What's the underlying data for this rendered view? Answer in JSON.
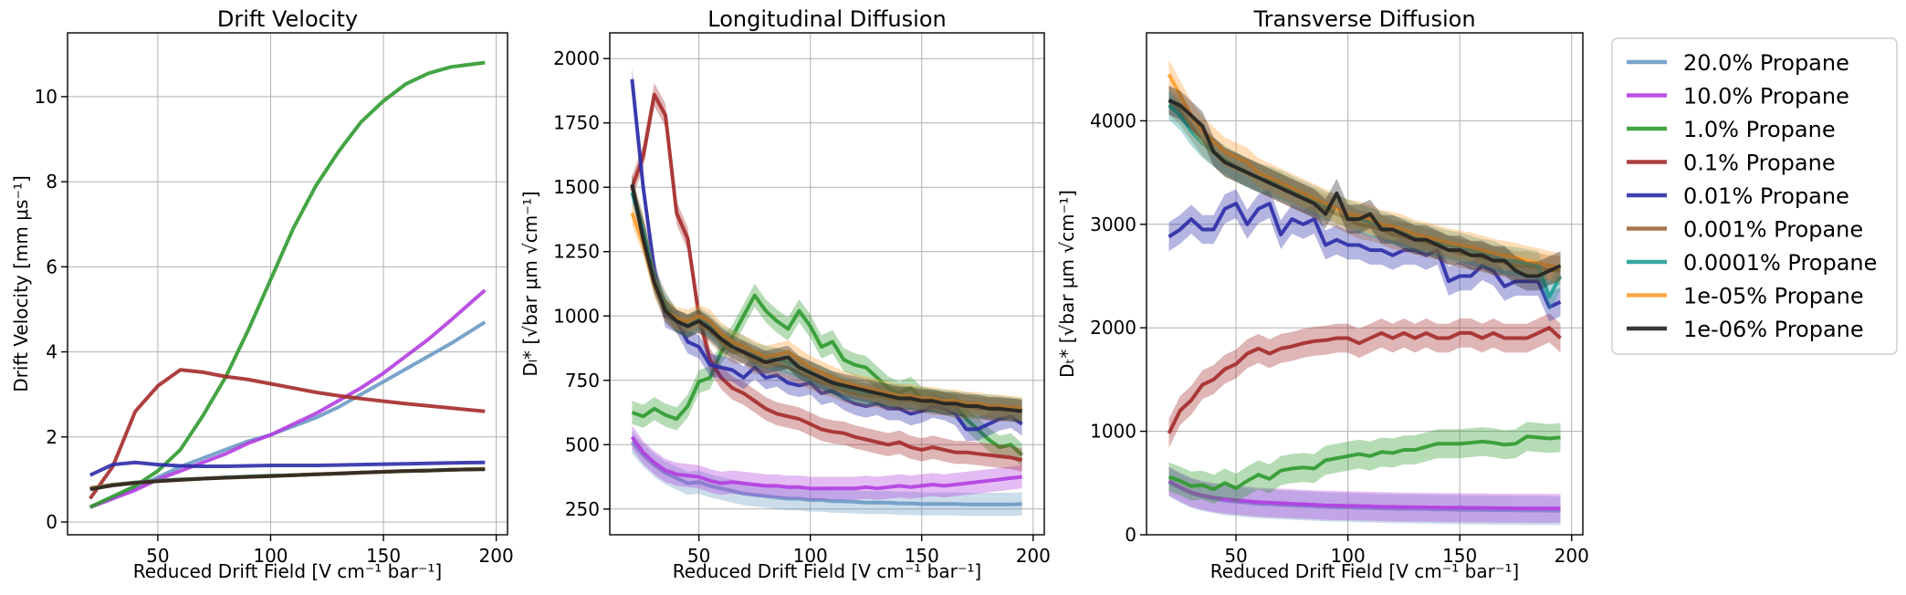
{
  "legend": [
    {
      "name": "20.0% Propane",
      "color": "#6b9ac4"
    },
    {
      "name": "10.0% Propane",
      "color": "#b23ee0"
    },
    {
      "name": "1.0% Propane",
      "color": "#2f9a2f"
    },
    {
      "name": "0.1% Propane",
      "color": "#a52a2a"
    },
    {
      "name": "0.01% Propane",
      "color": "#2c2ca8"
    },
    {
      "name": "0.001% Propane",
      "color": "#a0683c"
    },
    {
      "name": "0.0001% Propane",
      "color": "#1f9e96"
    },
    {
      "name": "1e-05% Propane",
      "color": "#ff9f30"
    },
    {
      "name": "1e-06% Propane",
      "color": "#222222"
    }
  ],
  "chart_data": [
    {
      "type": "line",
      "title": "Drift Velocity",
      "xlabel": "Reduced Drift Field [V cm⁻¹ bar⁻¹]",
      "ylabel": "Drift Velocity [mm μs⁻¹]",
      "xlim": [
        10,
        205
      ],
      "ylim": [
        -0.3,
        11.5
      ],
      "xticks": [
        50,
        100,
        150,
        200
      ],
      "yticks": [
        0,
        2,
        4,
        6,
        8,
        10
      ],
      "grid": true,
      "x": [
        20,
        30,
        40,
        50,
        60,
        70,
        80,
        90,
        100,
        110,
        120,
        130,
        140,
        150,
        160,
        170,
        180,
        195
      ],
      "series": [
        {
          "name": "20.0% Propane",
          "values": [
            0.35,
            0.55,
            0.8,
            1.05,
            1.3,
            1.5,
            1.7,
            1.9,
            2.05,
            2.25,
            2.45,
            2.7,
            3.0,
            3.3,
            3.6,
            3.9,
            4.2,
            4.7
          ]
        },
        {
          "name": "10.0% Propane",
          "values": [
            0.35,
            0.55,
            0.75,
            1.0,
            1.2,
            1.4,
            1.6,
            1.85,
            2.05,
            2.3,
            2.55,
            2.85,
            3.15,
            3.5,
            3.9,
            4.3,
            4.75,
            5.45
          ]
        },
        {
          "name": "1.0% Propane",
          "values": [
            0.35,
            0.6,
            0.85,
            1.2,
            1.7,
            2.5,
            3.4,
            4.5,
            5.7,
            6.9,
            7.9,
            8.7,
            9.4,
            9.9,
            10.3,
            10.55,
            10.7,
            10.8
          ]
        },
        {
          "name": "0.1% Propane",
          "values": [
            0.55,
            1.3,
            2.6,
            3.2,
            3.58,
            3.52,
            3.42,
            3.35,
            3.25,
            3.15,
            3.05,
            2.97,
            2.9,
            2.84,
            2.78,
            2.73,
            2.68,
            2.6
          ]
        },
        {
          "name": "0.01% Propane",
          "values": [
            1.1,
            1.35,
            1.4,
            1.35,
            1.32,
            1.31,
            1.31,
            1.32,
            1.33,
            1.33,
            1.33,
            1.34,
            1.35,
            1.36,
            1.37,
            1.38,
            1.39,
            1.4
          ]
        },
        {
          "name": "0.001% Propane",
          "values": [
            0.8,
            0.88,
            0.93,
            0.97,
            1.0,
            1.02,
            1.05,
            1.07,
            1.09,
            1.1,
            1.12,
            1.14,
            1.16,
            1.18,
            1.2,
            1.21,
            1.23,
            1.25
          ]
        },
        {
          "name": "0.0001% Propane",
          "values": [
            0.78,
            0.87,
            0.93,
            0.97,
            1.0,
            1.02,
            1.05,
            1.07,
            1.09,
            1.1,
            1.12,
            1.14,
            1.16,
            1.18,
            1.2,
            1.21,
            1.23,
            1.25
          ]
        },
        {
          "name": "1e-05% Propane",
          "values": [
            0.78,
            0.86,
            0.92,
            0.96,
            0.99,
            1.02,
            1.04,
            1.06,
            1.08,
            1.1,
            1.12,
            1.14,
            1.16,
            1.18,
            1.2,
            1.21,
            1.23,
            1.25
          ]
        },
        {
          "name": "1e-06% Propane",
          "values": [
            0.77,
            0.86,
            0.92,
            0.96,
            0.99,
            1.02,
            1.04,
            1.06,
            1.08,
            1.1,
            1.12,
            1.14,
            1.16,
            1.18,
            1.2,
            1.21,
            1.23,
            1.24
          ]
        }
      ]
    },
    {
      "type": "line",
      "title": "Longitudinal Diffusion",
      "xlabel": "Reduced Drift Field [V cm⁻¹ bar⁻¹]",
      "ylabel": "Dₗ* [√bar μm √cm⁻¹]",
      "xlim": [
        10,
        205
      ],
      "ylim": [
        150,
        2100
      ],
      "xticks": [
        50,
        100,
        150,
        200
      ],
      "yticks": [
        250,
        500,
        750,
        1000,
        1250,
        1500,
        1750,
        2000
      ],
      "grid": true,
      "x": [
        20,
        25,
        30,
        35,
        40,
        45,
        50,
        55,
        60,
        65,
        70,
        75,
        80,
        85,
        90,
        95,
        100,
        105,
        110,
        115,
        120,
        125,
        130,
        135,
        140,
        145,
        150,
        155,
        160,
        165,
        170,
        175,
        180,
        185,
        190,
        195
      ],
      "series": [
        {
          "name": "20.0% Propane",
          "values": [
            510,
            460,
            420,
            390,
            370,
            350,
            355,
            340,
            330,
            320,
            310,
            305,
            300,
            295,
            290,
            290,
            285,
            285,
            280,
            280,
            278,
            275,
            275,
            275,
            272,
            272,
            270,
            270,
            270,
            270,
            268,
            268,
            268,
            268,
            268,
            270
          ]
        },
        {
          "name": "10.0% Propane",
          "values": [
            530,
            470,
            430,
            400,
            385,
            380,
            375,
            360,
            350,
            355,
            350,
            345,
            340,
            340,
            335,
            335,
            330,
            330,
            330,
            330,
            330,
            335,
            330,
            335,
            340,
            335,
            340,
            345,
            340,
            345,
            350,
            355,
            360,
            365,
            370,
            375
          ]
        },
        {
          "name": "1.0% Propane",
          "values": [
            625,
            610,
            640,
            615,
            600,
            650,
            745,
            760,
            860,
            920,
            1000,
            1080,
            1020,
            980,
            950,
            1020,
            960,
            880,
            900,
            830,
            810,
            800,
            760,
            720,
            700,
            720,
            680,
            670,
            660,
            650,
            600,
            560,
            520,
            490,
            500,
            460
          ]
        },
        {
          "name": "0.1% Propane",
          "values": [
            1500,
            1620,
            1860,
            1780,
            1400,
            1300,
            1000,
            830,
            760,
            720,
            700,
            670,
            640,
            620,
            610,
            600,
            580,
            560,
            550,
            545,
            530,
            520,
            510,
            500,
            510,
            490,
            480,
            490,
            480,
            470,
            470,
            465,
            460,
            455,
            450,
            440
          ]
        },
        {
          "name": "0.01% Propane",
          "values": [
            1920,
            1500,
            1180,
            1000,
            980,
            900,
            880,
            810,
            800,
            790,
            760,
            800,
            760,
            770,
            740,
            730,
            740,
            700,
            710,
            680,
            660,
            650,
            660,
            640,
            640,
            620,
            630,
            650,
            640,
            620,
            560,
            560,
            580,
            600,
            610,
            580
          ]
        },
        {
          "name": "0.001% Propane",
          "values": [
            1500,
            1350,
            1150,
            1050,
            980,
            960,
            980,
            940,
            900,
            860,
            860,
            820,
            820,
            810,
            800,
            780,
            760,
            740,
            730,
            710,
            700,
            690,
            690,
            680,
            680,
            670,
            670,
            660,
            660,
            650,
            650,
            640,
            640,
            635,
            635,
            630
          ]
        },
        {
          "name": "0.0001% Propane",
          "values": [
            1480,
            1330,
            1140,
            1040,
            980,
            960,
            990,
            960,
            920,
            900,
            880,
            850,
            840,
            830,
            820,
            800,
            780,
            760,
            740,
            720,
            710,
            700,
            700,
            690,
            690,
            680,
            680,
            670,
            670,
            660,
            660,
            650,
            650,
            645,
            640,
            635
          ]
        },
        {
          "name": "1e-05% Propane",
          "values": [
            1400,
            1280,
            1120,
            1020,
            990,
            980,
            1000,
            980,
            930,
            900,
            880,
            860,
            840,
            850,
            860,
            830,
            800,
            780,
            760,
            740,
            730,
            720,
            710,
            700,
            690,
            690,
            680,
            680,
            670,
            670,
            660,
            660,
            650,
            650,
            645,
            640
          ]
        },
        {
          "name": "1e-06% Propane",
          "values": [
            1510,
            1300,
            1130,
            1020,
            980,
            960,
            980,
            950,
            910,
            880,
            860,
            840,
            820,
            830,
            840,
            800,
            780,
            760,
            740,
            730,
            720,
            710,
            700,
            690,
            680,
            680,
            670,
            670,
            660,
            660,
            650,
            650,
            640,
            640,
            635,
            630
          ]
        }
      ]
    },
    {
      "type": "line",
      "title": "Transverse Diffusion",
      "xlabel": "Reduced Drift Field [V cm⁻¹ bar⁻¹]",
      "ylabel": "Dₜ* [√bar μm √cm⁻¹]",
      "xlim": [
        10,
        205
      ],
      "ylim": [
        0,
        4850
      ],
      "xticks": [
        50,
        100,
        150,
        200
      ],
      "yticks": [
        0,
        1000,
        2000,
        3000,
        4000
      ],
      "grid": true,
      "x": [
        20,
        25,
        30,
        35,
        40,
        45,
        50,
        55,
        60,
        65,
        70,
        75,
        80,
        85,
        90,
        95,
        100,
        105,
        110,
        115,
        120,
        125,
        130,
        135,
        140,
        145,
        150,
        155,
        160,
        165,
        170,
        175,
        180,
        185,
        190,
        195
      ],
      "series": [
        {
          "name": "20.0% Propane",
          "values": [
            510,
            450,
            400,
            370,
            350,
            330,
            320,
            310,
            300,
            295,
            290,
            285,
            280,
            275,
            270,
            265,
            265,
            260,
            258,
            255,
            252,
            250,
            250,
            248,
            245,
            245,
            242,
            240,
            240,
            238,
            238,
            236,
            235,
            235,
            234,
            233
          ]
        },
        {
          "name": "10.0% Propane",
          "values": [
            520,
            460,
            410,
            380,
            360,
            345,
            335,
            325,
            315,
            310,
            305,
            300,
            295,
            290,
            285,
            282,
            280,
            278,
            275,
            272,
            270,
            268,
            266,
            265,
            264,
            262,
            262,
            260,
            260,
            258,
            258,
            256,
            256,
            255,
            255,
            255
          ]
        },
        {
          "name": "1.0% Propane",
          "values": [
            560,
            520,
            470,
            480,
            440,
            500,
            450,
            520,
            580,
            540,
            620,
            640,
            650,
            640,
            720,
            740,
            760,
            780,
            760,
            800,
            790,
            820,
            820,
            850,
            880,
            880,
            880,
            890,
            900,
            890,
            870,
            880,
            950,
            940,
            930,
            940
          ]
        },
        {
          "name": "0.1% Propane",
          "values": [
            980,
            1200,
            1300,
            1450,
            1500,
            1600,
            1650,
            1750,
            1800,
            1750,
            1800,
            1820,
            1850,
            1870,
            1880,
            1900,
            1900,
            1850,
            1900,
            1950,
            1900,
            1950,
            1900,
            1950,
            1900,
            1900,
            1950,
            1950,
            1900,
            1950,
            1900,
            1900,
            1900,
            1950,
            2000,
            1900
          ]
        },
        {
          "name": "0.01% Propane",
          "values": [
            2880,
            2950,
            3050,
            2950,
            2950,
            3150,
            3200,
            3000,
            3150,
            3200,
            2900,
            3050,
            3000,
            3050,
            2800,
            2850,
            2800,
            2800,
            2750,
            2750,
            2700,
            2750,
            2750,
            2700,
            2750,
            2450,
            2500,
            2500,
            2600,
            2550,
            2400,
            2450,
            2450,
            2450,
            2200,
            2250
          ]
        },
        {
          "name": "0.001% Propane",
          "values": [
            4200,
            4100,
            3950,
            3800,
            3700,
            3600,
            3550,
            3500,
            3450,
            3400,
            3350,
            3300,
            3250,
            3200,
            3150,
            3100,
            3050,
            3000,
            2980,
            2950,
            2900,
            2880,
            2850,
            2820,
            2800,
            2750,
            2720,
            2700,
            2680,
            2650,
            2630,
            2600,
            2600,
            2580,
            2560,
            2550
          ]
        },
        {
          "name": "0.0001% Propane",
          "values": [
            4150,
            4050,
            3900,
            3780,
            3700,
            3620,
            3560,
            3500,
            3450,
            3420,
            3380,
            3330,
            3280,
            3230,
            3180,
            3150,
            3100,
            3060,
            3020,
            2990,
            2950,
            2920,
            2880,
            2860,
            2830,
            2800,
            2780,
            2750,
            2720,
            2700,
            2650,
            2640,
            2620,
            2600,
            2300,
            2500
          ]
        },
        {
          "name": "1e-05% Propane",
          "values": [
            4450,
            4250,
            4050,
            3900,
            3800,
            3700,
            3650,
            3600,
            3500,
            3450,
            3400,
            3350,
            3300,
            3250,
            3200,
            3150,
            3100,
            3080,
            3050,
            3000,
            2980,
            2950,
            2900,
            2880,
            2850,
            2820,
            2800,
            2780,
            2750,
            2720,
            2700,
            2680,
            2650,
            2630,
            2600,
            2580
          ]
        },
        {
          "name": "1e-06% Propane",
          "values": [
            4200,
            4150,
            4050,
            3950,
            3700,
            3600,
            3550,
            3500,
            3450,
            3400,
            3350,
            3300,
            3250,
            3200,
            3100,
            3300,
            3050,
            3050,
            3100,
            2950,
            2950,
            2900,
            2850,
            2850,
            2800,
            2750,
            2750,
            2700,
            2700,
            2650,
            2650,
            2550,
            2500,
            2500,
            2550,
            2600
          ]
        }
      ]
    }
  ]
}
